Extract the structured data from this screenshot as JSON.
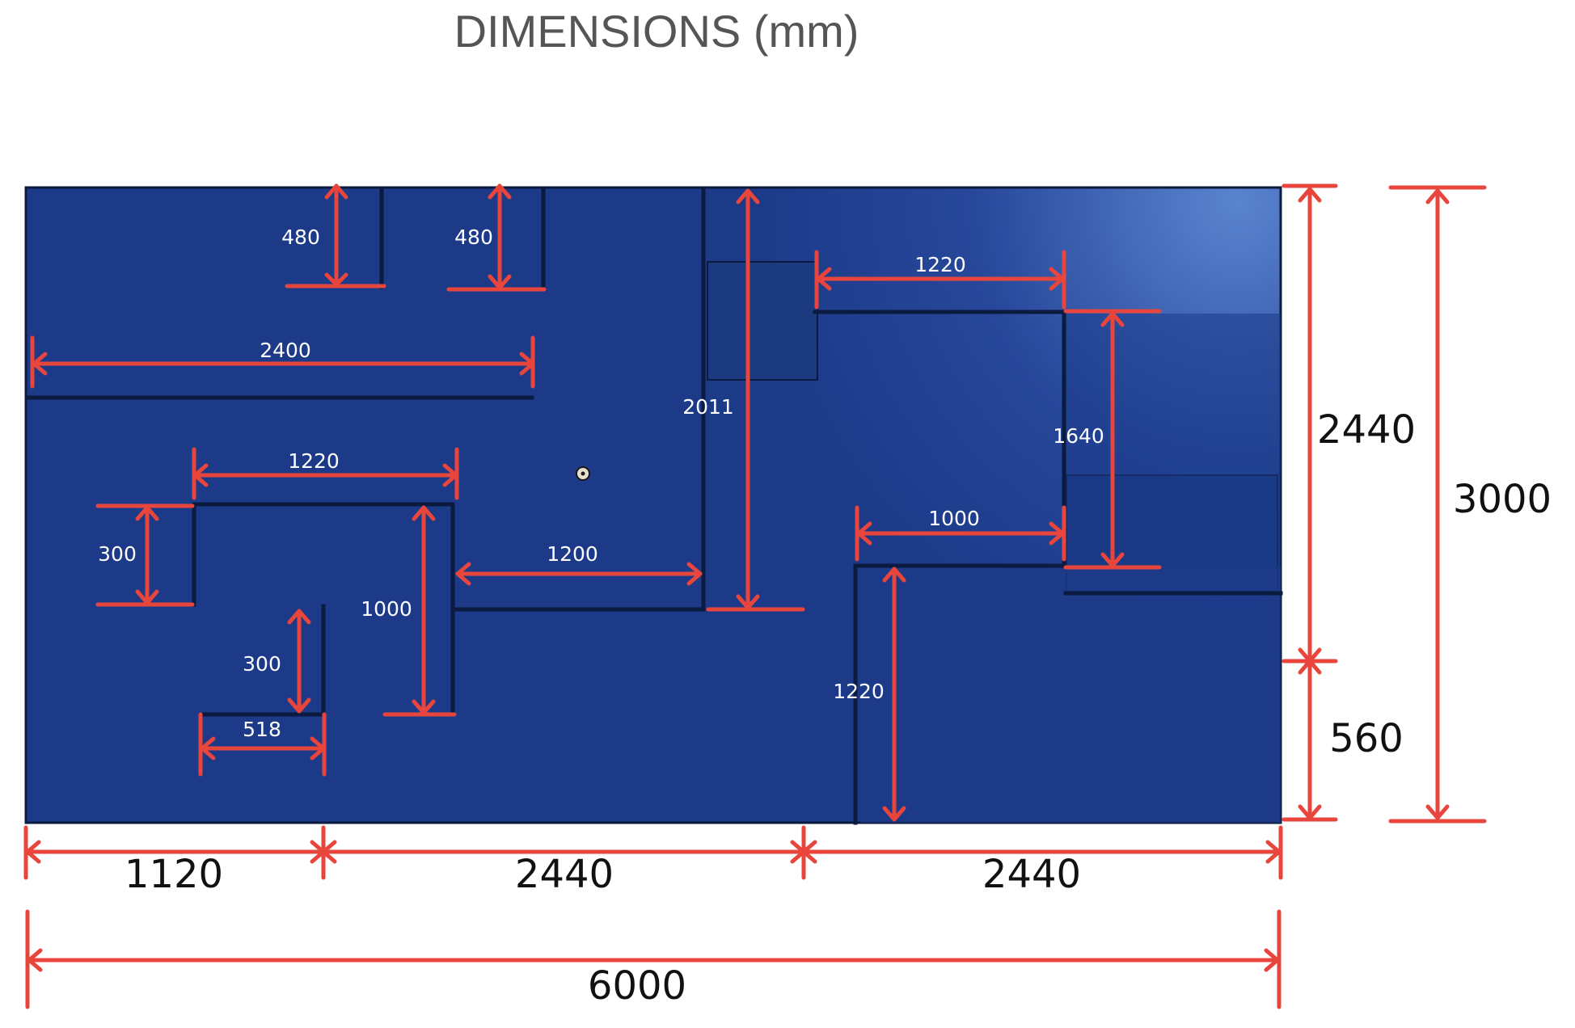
{
  "title": "DIMENSIONS (mm)",
  "colors": {
    "board": "#1c3a88",
    "board_highlight": "#5a84cf",
    "wall_line": "#0b1a3f",
    "dimension_line": "#e8453c",
    "inner_text": "#ffffff",
    "outer_text": "#111111"
  },
  "inner_dimensions": {
    "wall_a_depth": "480",
    "wall_b_depth": "480",
    "top_left_wall_length": "2400",
    "u_wall_top_width": "1220",
    "u_wall_left_height": "300",
    "u_wall_right_height": "1000",
    "small_l_height": "300",
    "small_l_width": "518",
    "corridor_width": "1200",
    "center_wall_height": "2011",
    "right_top_wall_width": "1220",
    "right_box_height": "1640",
    "right_mid_wall_width": "1000",
    "right_lower_wall_height": "1220"
  },
  "outer_dimensions": {
    "bottom_segment_1": "1120",
    "bottom_segment_2": "2440",
    "bottom_segment_3": "2440",
    "total_width": "6000",
    "right_segment_upper": "2440",
    "right_segment_lower": "560",
    "total_height": "3000"
  }
}
